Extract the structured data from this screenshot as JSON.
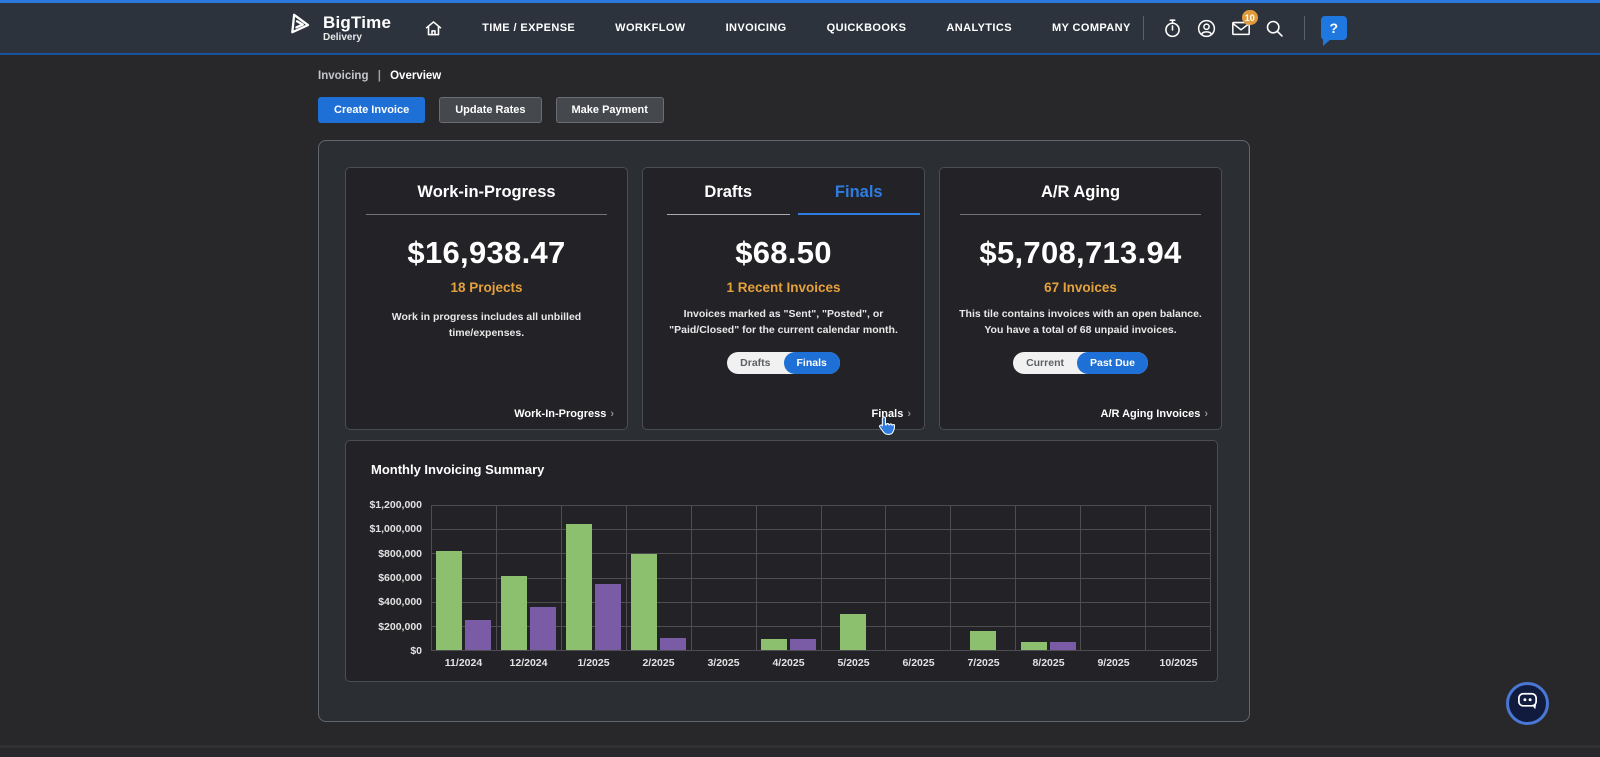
{
  "nav": {
    "brand": {
      "name": "BigTime",
      "sub": "Delivery"
    },
    "items": [
      {
        "label": "TIME / EXPENSE"
      },
      {
        "label": "WORKFLOW"
      },
      {
        "label": "INVOICING"
      },
      {
        "label": "QUICKBOOKS"
      },
      {
        "label": "ANALYTICS"
      },
      {
        "label": "MY COMPANY"
      }
    ],
    "mail_badge": "10",
    "help_label": "?"
  },
  "breadcrumb": {
    "section": "Invoicing",
    "separator": "|",
    "page": "Overview"
  },
  "actions": {
    "create_invoice": "Create Invoice",
    "update_rates": "Update Rates",
    "make_payment": "Make Payment"
  },
  "cards": {
    "wip": {
      "title": "Work-in-Progress",
      "amount": "$16,938.47",
      "subtitle": "18 Projects",
      "description": "Work in progress includes all unbilled time/expenses.",
      "footer_link": "Work-In-Progress",
      "footer_chevron": "›"
    },
    "invoices": {
      "tab_drafts": "Drafts",
      "tab_finals": "Finals",
      "amount": "$68.50",
      "subtitle": "1 Recent Invoices",
      "description": "Invoices marked as \"Sent\", \"Posted\", or \"Paid/Closed\" for the current calendar month.",
      "toggle_left": "Drafts",
      "toggle_right": "Finals",
      "footer_link": "Finals",
      "footer_chevron": "›"
    },
    "ar_aging": {
      "title": "A/R Aging",
      "amount": "$5,708,713.94",
      "subtitle": "67 Invoices",
      "description": "This tile contains invoices with an open balance. You have a total of 68 unpaid invoices.",
      "toggle_left": "Current",
      "toggle_right": "Past Due",
      "footer_link": "A/R Aging Invoices",
      "footer_chevron": "›"
    }
  },
  "chart": {
    "title": "Monthly Invoicing Summary"
  },
  "chart_data": {
    "type": "bar",
    "title": "Monthly Invoicing Summary",
    "categories": [
      "11/2024",
      "12/2024",
      "1/2025",
      "2/2025",
      "3/2025",
      "4/2025",
      "5/2025",
      "6/2025",
      "7/2025",
      "8/2025",
      "9/2025",
      "10/2025"
    ],
    "series": [
      {
        "name": "green-series",
        "color": "#8cbf6e",
        "values": [
          820000,
          610000,
          1040000,
          795000,
          0,
          90000,
          300000,
          0,
          160000,
          70000,
          0,
          0
        ]
      },
      {
        "name": "purple-series",
        "color": "#7a5ca6",
        "values": [
          245000,
          360000,
          550000,
          100000,
          0,
          95000,
          0,
          0,
          0,
          70000,
          0,
          0
        ]
      }
    ],
    "ylim": [
      0,
      1200000
    ],
    "ytick_labels": [
      "$1,200,000",
      "$1,000,000",
      "$800,000",
      "$600,000",
      "$400,000",
      "$200,000",
      "$0"
    ],
    "grid": true,
    "legend": false
  },
  "colors": {
    "accent_blue": "#2b77dd",
    "toggle_blue": "#1e6fd6",
    "orange": "#e5a13c",
    "bar_green": "#8cbf6e",
    "bar_purple": "#7a5ca6"
  }
}
